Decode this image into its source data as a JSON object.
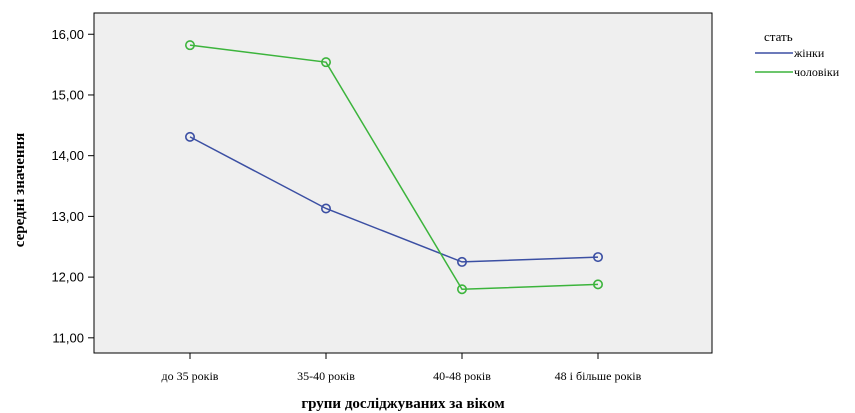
{
  "chart_data": {
    "type": "line",
    "categories": [
      "до 35 років",
      "35-40 років",
      "40-48 років",
      "48 і більше років"
    ],
    "series": [
      {
        "name": "жінки",
        "color": "#3b4fa3",
        "values": [
          14.31,
          13.13,
          12.25,
          12.33
        ]
      },
      {
        "name": "чоловіки",
        "color": "#3cb43c",
        "values": [
          15.82,
          15.54,
          11.8,
          11.88
        ]
      }
    ],
    "xlabel": "групи досліджуваних за віком",
    "ylabel": "середні значення",
    "ylim": [
      10.75,
      16.35
    ],
    "yticks": [
      11,
      12,
      13,
      14,
      15,
      16
    ],
    "ytick_labels": [
      "11,00",
      "12,00",
      "13,00",
      "14,00",
      "15,00",
      "16,00"
    ],
    "legend_title": "стать",
    "legend_position": "top-right, outside plot",
    "plot_background": "#efefef",
    "grid": false
  }
}
